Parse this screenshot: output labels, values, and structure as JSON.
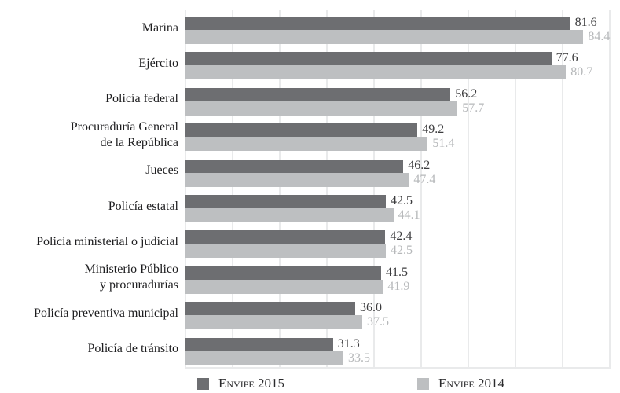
{
  "chart_data": {
    "type": "bar",
    "orientation": "horizontal",
    "title": "",
    "xlabel": "",
    "ylabel": "",
    "xlim": [
      0,
      90
    ],
    "grid": true,
    "grid_step": 10,
    "grid_color": "#e9eaeb",
    "legend_position": "bottom",
    "value_labels": true,
    "value_decimals": 1,
    "categories": [
      [
        "Marina"
      ],
      [
        "Ejército"
      ],
      [
        "Policía federal"
      ],
      [
        "Procuraduría General",
        "de la República"
      ],
      [
        "Jueces"
      ],
      [
        "Policía estatal"
      ],
      [
        "Policía ministerial o judicial"
      ],
      [
        "Ministerio Público",
        "y procuradurías"
      ],
      [
        "Policía preventiva municipal"
      ],
      [
        "Policía de tránsito"
      ]
    ],
    "series": [
      {
        "name": "Envipe 2015",
        "color": "#6d6e71",
        "label_color": "#3b3b3d",
        "values": [
          81.6,
          77.6,
          56.2,
          49.2,
          46.2,
          42.5,
          42.4,
          41.5,
          36.0,
          31.3
        ]
      },
      {
        "name": "Envipe 2014",
        "color": "#bdbfc1",
        "label_color": "#b6b8ba",
        "values": [
          84.4,
          80.7,
          57.7,
          51.4,
          47.4,
          44.1,
          42.5,
          41.9,
          37.5,
          33.5
        ]
      }
    ]
  },
  "legend": {
    "items": [
      {
        "label": "Envipe 2015",
        "color": "#6d6e71"
      },
      {
        "label": "Envipe 2014",
        "color": "#bdbfc1"
      }
    ]
  }
}
